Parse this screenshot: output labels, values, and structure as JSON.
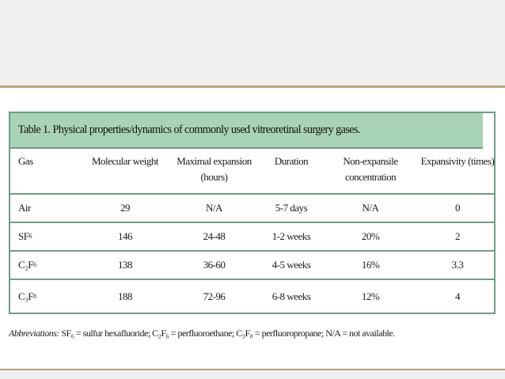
{
  "table": {
    "title": "Table 1. Physical properties/dynamics of commonly used vitreoretinal surgery gases.",
    "headers": [
      "Gas",
      "Molecular weight",
      "Maximal expansion (hours)",
      "Duration",
      "Non-expansile concentration",
      "Expansivity (times)"
    ],
    "rows": [
      {
        "gas": "Air",
        "sub": "",
        "molecular_weight": "29",
        "max_expansion": "N/A",
        "duration": "5-7 days",
        "non_expansile": "N/A",
        "expansivity": "0"
      },
      {
        "gas": "SF",
        "sub": "6",
        "molecular_weight": "146",
        "max_expansion": "24-48",
        "duration": "1-2 weeks",
        "non_expansile": "20%",
        "expansivity": "2"
      },
      {
        "gas": "C₂F",
        "sub": "6",
        "molecular_weight": "138",
        "max_expansion": "36-60",
        "duration": "4-5 weeks",
        "non_expansile": "16%",
        "expansivity": "3.3"
      },
      {
        "gas": "C₃F",
        "sub": "8",
        "molecular_weight": "188",
        "max_expansion": "72-96",
        "duration": "6-8 weeks",
        "non_expansile": "12%",
        "expansivity": "4"
      }
    ]
  },
  "footnote": {
    "label": "Abbreviations:",
    "text": "SF₆ = sulfur hexafluoride; C₂F₆ = perfluoroethane; C₃F₈ = perfluoropropane; N/A = not available."
  },
  "colors": {
    "title_bg": "#a8d3b5",
    "border": "#6d9e82",
    "accent_rule": "#b8a37a",
    "band": "#efefef"
  }
}
